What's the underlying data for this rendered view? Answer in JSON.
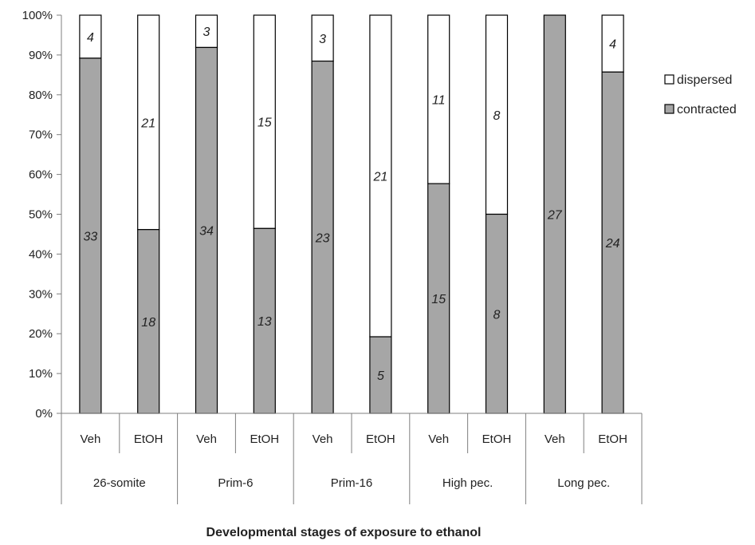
{
  "chart_data": {
    "type": "bar",
    "stacked": true,
    "percent": true,
    "groups": [
      "26-somite",
      "Prim-6",
      "Prim-16",
      "High pec.",
      "Long pec."
    ],
    "categories": [
      "Veh",
      "EtOH",
      "Veh",
      "EtOH",
      "Veh",
      "EtOH",
      "Veh",
      "EtOH",
      "Veh",
      "EtOH"
    ],
    "series": [
      {
        "name": "contracted",
        "values": [
          33,
          18,
          34,
          13,
          23,
          5,
          15,
          8,
          27,
          24
        ],
        "color": "#a6a6a6"
      },
      {
        "name": "dispersed",
        "values": [
          4,
          21,
          3,
          15,
          3,
          21,
          11,
          8,
          0,
          4
        ],
        "color": "#ffffff"
      }
    ],
    "yticks": [
      "0%",
      "10%",
      "20%",
      "30%",
      "40%",
      "50%",
      "60%",
      "70%",
      "80%",
      "90%",
      "100%"
    ],
    "ylim": [
      0,
      100
    ],
    "xlabel": "Developmental stages of exposure to ethanol",
    "ylabel": "",
    "legend_position": "right",
    "grid": false
  }
}
